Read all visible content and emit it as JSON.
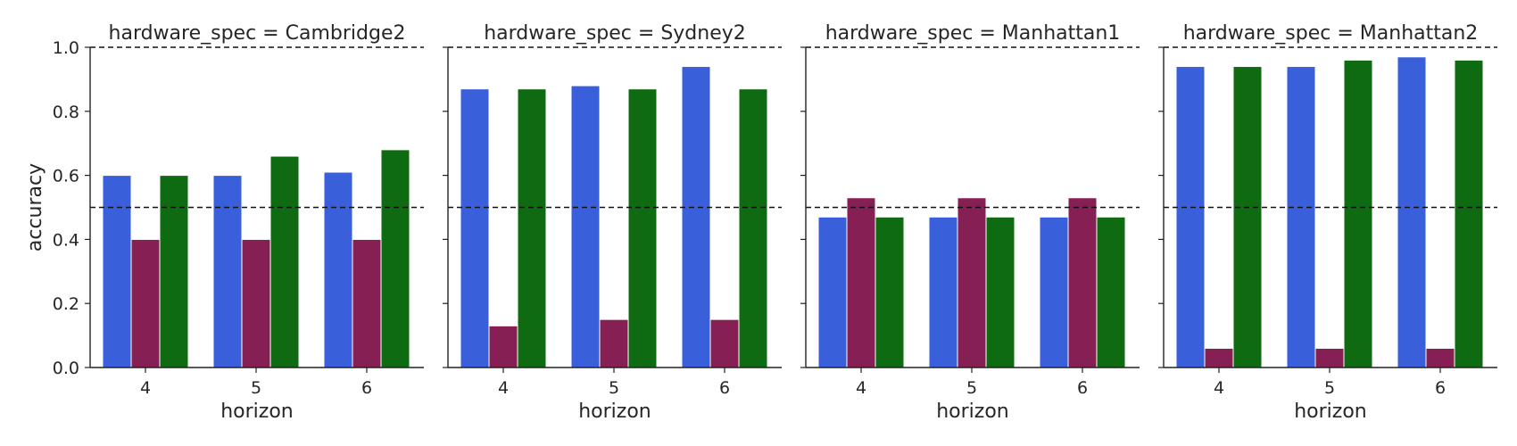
{
  "chart_data": {
    "type": "bar",
    "facet_title_template": "hardware_spec = {name}",
    "xlabel": "horizon",
    "ylabel": "accuracy",
    "ylim": [
      0,
      1.0
    ],
    "yticks": [
      "0.0",
      "0.2",
      "0.4",
      "0.6",
      "0.8",
      "1.0"
    ],
    "yticks_values": [
      0,
      0.2,
      0.4,
      0.6,
      0.8,
      1.0
    ],
    "categories": [
      "4",
      "5",
      "6"
    ],
    "reference_lines": [
      0.5,
      1.0
    ],
    "series_colors": [
      "#3a5fdb",
      "#861f53",
      "#0f6b12"
    ],
    "legend": "none",
    "grid": false,
    "panels": [
      {
        "title": "hardware_spec = Cambridge2",
        "series": [
          {
            "values": [
              0.6,
              0.6,
              0.61
            ]
          },
          {
            "values": [
              0.4,
              0.4,
              0.4
            ]
          },
          {
            "values": [
              0.6,
              0.66,
              0.68
            ]
          }
        ]
      },
      {
        "title": "hardware_spec = Sydney2",
        "series": [
          {
            "values": [
              0.87,
              0.88,
              0.94
            ]
          },
          {
            "values": [
              0.13,
              0.15,
              0.15
            ]
          },
          {
            "values": [
              0.87,
              0.87,
              0.87
            ]
          }
        ]
      },
      {
        "title": "hardware_spec = Manhattan1",
        "series": [
          {
            "values": [
              0.47,
              0.47,
              0.47
            ]
          },
          {
            "values": [
              0.53,
              0.53,
              0.53
            ]
          },
          {
            "values": [
              0.47,
              0.47,
              0.47
            ]
          }
        ]
      },
      {
        "title": "hardware_spec = Manhattan2",
        "series": [
          {
            "values": [
              0.94,
              0.94,
              0.97
            ]
          },
          {
            "values": [
              0.06,
              0.06,
              0.06
            ]
          },
          {
            "values": [
              0.94,
              0.96,
              0.96
            ]
          }
        ]
      }
    ]
  }
}
